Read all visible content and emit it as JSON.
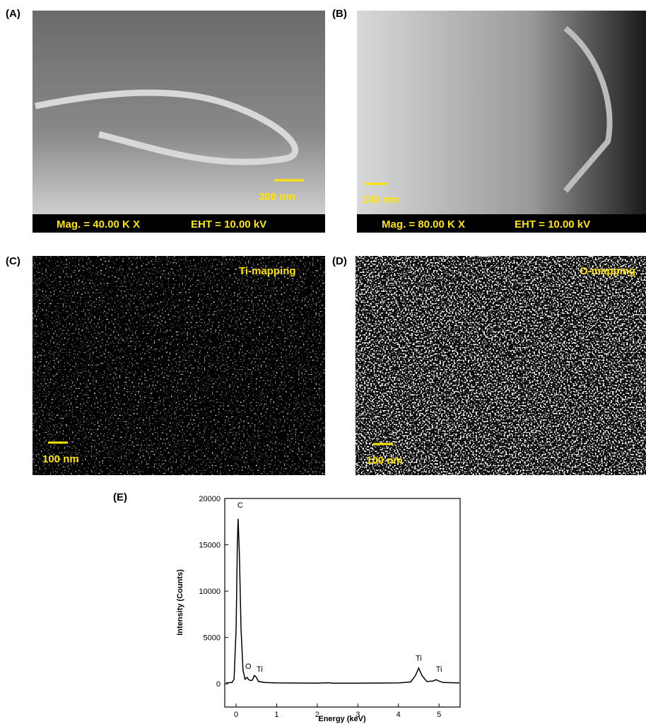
{
  "panels": [
    {
      "label": "(A)",
      "scale_bar": "300 nm",
      "mag": "Mag. = 40.00 K X",
      "eht": "EHT = 10.00 kV"
    },
    {
      "label": "(B)",
      "scale_bar": "100 nm",
      "mag": "Mag. = 80.00 K X",
      "eht": "EHT = 10.00 kV"
    },
    {
      "label": "(C)",
      "scale_bar": "100 nm",
      "mapping": "Ti-mapping"
    },
    {
      "label": "(D)",
      "scale_bar": "100 nm",
      "mapping": "O-mapping"
    }
  ],
  "chart_data": {
    "type": "line",
    "label": "(E)",
    "x_label": "Energy (keV)",
    "y_label": "Intensity (Counts)",
    "x": [
      -0.25,
      -0.1,
      -0.05,
      0,
      0.03,
      0.05,
      0.08,
      0.12,
      0.17,
      0.22,
      0.27,
      0.3,
      0.35,
      0.4,
      0.45,
      0.5,
      0.55,
      0.7,
      1,
      2,
      2.3,
      2.35,
      3,
      4,
      4.3,
      4.42,
      4.5,
      4.58,
      4.7,
      4.85,
      4.93,
      5.0,
      5.1,
      5.5
    ],
    "series": [
      {
        "color": "#000000",
        "values": [
          100,
          150,
          500,
          6000,
          15000,
          17800,
          14000,
          6000,
          1500,
          500,
          700,
          500,
          350,
          400,
          900,
          700,
          250,
          150,
          100,
          80,
          120,
          80,
          80,
          100,
          200,
          900,
          1700,
          900,
          250,
          300,
          450,
          300,
          150,
          100
        ]
      }
    ],
    "xlim": [
      -0.28,
      5.52
    ],
    "ylim": [
      -2500,
      20000
    ],
    "xticks": [
      0,
      1,
      2,
      3,
      4,
      5
    ],
    "yticks": [
      0,
      5000,
      10000,
      15000,
      20000
    ],
    "annotations": [
      {
        "text": "C",
        "x": 0.1,
        "y": 19000
      },
      {
        "text": "O",
        "x": 0.3,
        "y": 1600
      },
      {
        "text": "Ti",
        "x": 0.58,
        "y": 1300
      },
      {
        "text": "Ti",
        "x": 4.5,
        "y": 2500
      },
      {
        "text": "Ti",
        "x": 5.0,
        "y": 1300
      }
    ]
  }
}
